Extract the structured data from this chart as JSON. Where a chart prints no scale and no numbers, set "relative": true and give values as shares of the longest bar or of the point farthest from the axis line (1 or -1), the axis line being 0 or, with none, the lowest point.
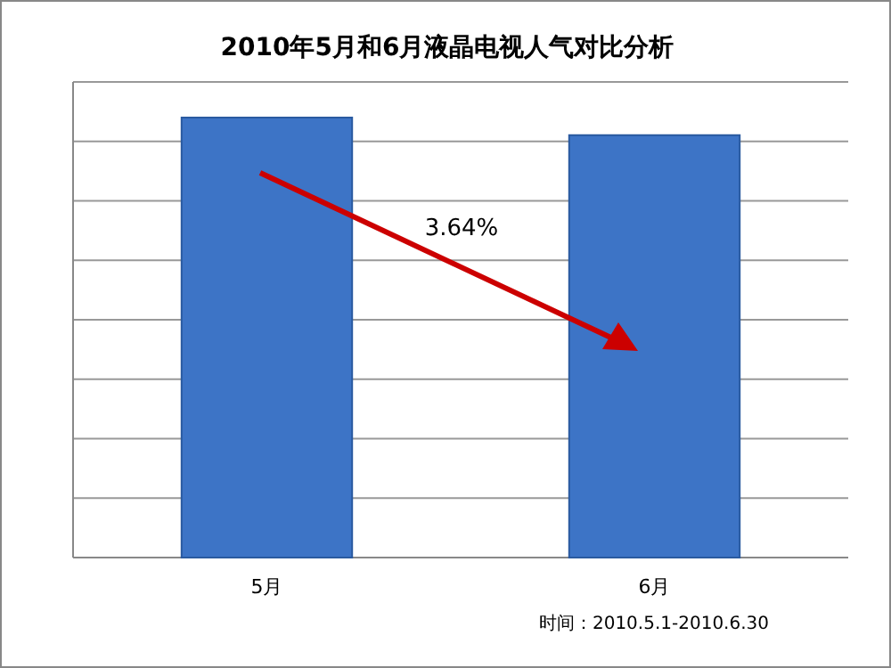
{
  "chart_data": {
    "type": "bar",
    "title": "2010年5月和6月液晶电视人气对比分析",
    "categories": [
      "5月",
      "6月"
    ],
    "values": [
      1,
      0.96
    ],
    "color": "#3d74c6",
    "relative": true,
    "grid": "y",
    "annotations": [
      "3.64%",
      "时间：2010.5.1-2010.6.30"
    ]
  }
}
